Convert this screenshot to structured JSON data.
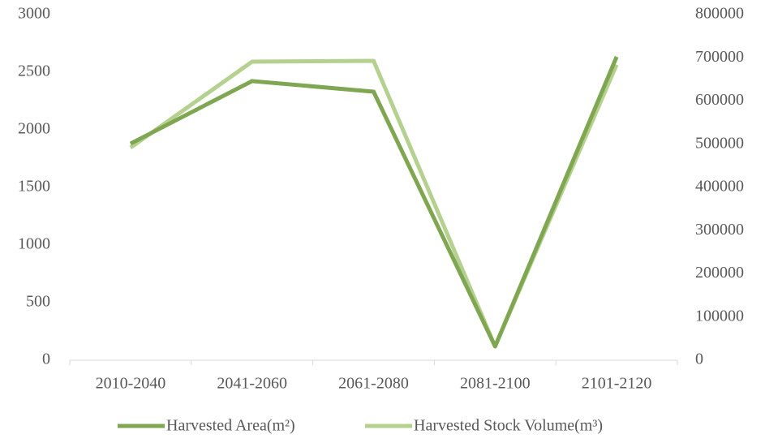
{
  "chart_data": {
    "type": "line",
    "categories": [
      "2010-2040",
      "2041-2060",
      "2061-2080",
      "2081-2100",
      "2101-2120"
    ],
    "series": [
      {
        "name": "Harvested Area(m²)",
        "color": "#7fa650",
        "values": [
          1880,
          2423,
          2331,
          120,
          2634
        ]
      },
      {
        "name": "Harvested Stock Volume(m³)",
        "color": "#b5d18f",
        "axis": "y2",
        "values": [
          492000,
          691000,
          693000,
          32000,
          684000
        ]
      }
    ],
    "ylim": [
      0,
      3000
    ],
    "yticks": [
      0,
      500,
      1000,
      1500,
      2000,
      2500,
      3000
    ],
    "y2lim": [
      0,
      800000
    ],
    "y2ticks": [
      0,
      100000,
      200000,
      300000,
      400000,
      500000,
      600000,
      700000,
      800000
    ],
    "legend": "bottom"
  }
}
